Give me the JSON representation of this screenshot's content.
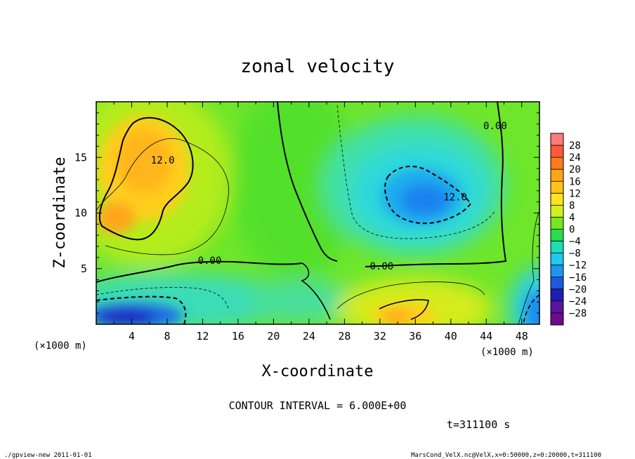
{
  "chart_data": {
    "type": "heatmap",
    "title": "zonal velocity",
    "xlabel": "X-coordinate",
    "ylabel": "Z-coordinate",
    "x_unit": "(×1000 m)",
    "y_unit": "(×1000 m)",
    "xlim": [
      0,
      50
    ],
    "ylim": [
      0,
      20
    ],
    "x_ticks": [
      4,
      8,
      12,
      16,
      20,
      24,
      28,
      32,
      36,
      40,
      44,
      48
    ],
    "y_ticks": [
      5,
      10,
      15
    ],
    "colorbar": {
      "labels": [
        "28",
        "24",
        "20",
        "16",
        "12",
        "8",
        "4",
        "0",
        "−4",
        "−8",
        "−12",
        "−16",
        "−20",
        "−24",
        "−28"
      ],
      "levels": [
        28,
        24,
        20,
        16,
        12,
        8,
        4,
        0,
        -4,
        -8,
        -12,
        -16,
        -20,
        -24,
        -28
      ],
      "colors": [
        "#ff7b7b",
        "#ff5a3c",
        "#ff7a1e",
        "#ffa51a",
        "#ffc21a",
        "#ffe21e",
        "#d2f01e",
        "#78e61e",
        "#28dc4b",
        "#1edcb4",
        "#1ec8f0",
        "#1e96f0",
        "#1e5adc",
        "#1e1eb4",
        "#5a14a0",
        "#6e0a8c"
      ]
    },
    "contour_labels": [
      {
        "text": "12.0",
        "x": 7.5,
        "z": 14.5
      },
      {
        "text": "12.0",
        "x": 40.5,
        "z": 11.2
      },
      {
        "text": "0.00",
        "x": 12.8,
        "z": 5.5
      },
      {
        "text": "0.00",
        "x": 32.2,
        "z": 5.0
      },
      {
        "text": "0.00",
        "x": 45.0,
        "z": 17.6
      }
    ],
    "contour_interval": "CONTOUR INTERVAL = 6.000E+00",
    "time": "t=311100 s",
    "max_regions": [
      {
        "name": "positive core upper-left",
        "x": 7,
        "z": 13.5,
        "value": 14
      },
      {
        "name": "negative core upper-right",
        "x": 38,
        "z": 11.5,
        "value": -16
      },
      {
        "name": "negative core bottom-left",
        "x": 4,
        "z": 1.2,
        "value": -20
      },
      {
        "name": "positive core bottom-center",
        "x": 35,
        "z": 1.0,
        "value": 12
      }
    ]
  },
  "footer": {
    "left": "./gpview-new   2011-01-01",
    "right": "MarsCond_VelX.nc@VelX,x=0:50000,z=0:20000,t=311100"
  }
}
